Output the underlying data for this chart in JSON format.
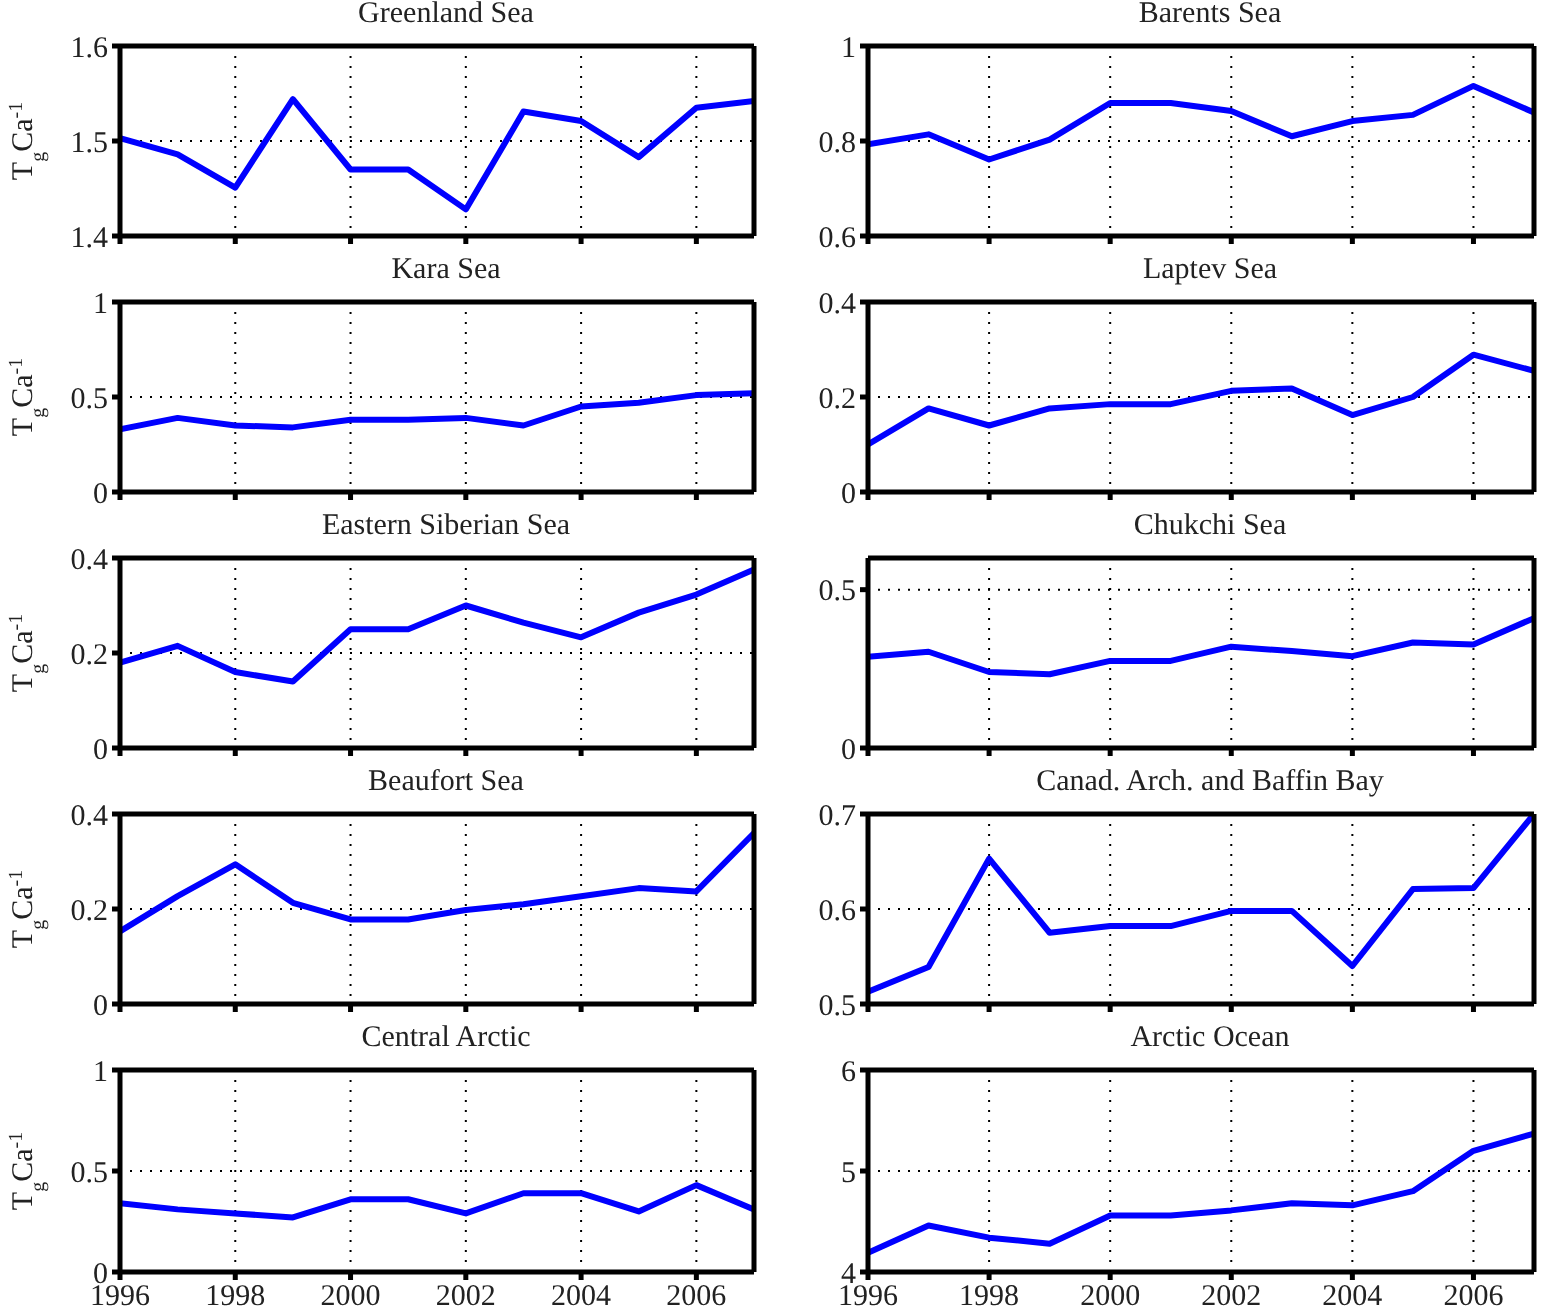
{
  "chart_data": [
    {
      "type": "line",
      "title": "Greenland Sea",
      "ylabel": "T$_{g}$Ca$^{-1}$",
      "x": [
        1996,
        1997,
        1998,
        1999,
        2000,
        2001,
        2002,
        2003,
        2004,
        2005,
        2006,
        2007
      ],
      "color": "#0000ff",
      "values": [
        1.503,
        1.486,
        1.451,
        1.544,
        1.47,
        1.47,
        1.428,
        1.531,
        1.521,
        1.483,
        1.535,
        1.542
      ],
      "xlim": [
        1996,
        2007
      ],
      "xticks": [
        1996,
        1998,
        2000,
        2002,
        2004,
        2006
      ],
      "ylim": [
        1.4,
        1.6
      ],
      "yticks": [
        1.4,
        1.5,
        1.6
      ],
      "grid": true,
      "tick_labels": "y"
    },
    {
      "type": "line",
      "title": "Barents Sea",
      "x": [
        1996,
        1997,
        1998,
        1999,
        2000,
        2001,
        2002,
        2003,
        2004,
        2005,
        2006,
        2007
      ],
      "color": "#0000ff",
      "values": [
        0.793,
        0.814,
        0.761,
        0.803,
        0.88,
        0.88,
        0.863,
        0.81,
        0.842,
        0.855,
        0.916,
        0.86
      ],
      "xlim": [
        1996,
        2007
      ],
      "xticks": [
        1996,
        1998,
        2000,
        2002,
        2004,
        2006
      ],
      "ylim": [
        0.6,
        1
      ],
      "yticks": [
        0.6,
        0.8,
        1
      ],
      "grid": true,
      "tick_labels": "y"
    },
    {
      "type": "line",
      "title": "Kara Sea",
      "ylabel": "T$_{g}$Ca$^{-1}$",
      "x": [
        1996,
        1997,
        1998,
        1999,
        2000,
        2001,
        2002,
        2003,
        2004,
        2005,
        2006,
        2007
      ],
      "color": "#0000ff",
      "values": [
        0.33,
        0.39,
        0.35,
        0.34,
        0.38,
        0.38,
        0.39,
        0.35,
        0.45,
        0.47,
        0.51,
        0.52
      ],
      "xlim": [
        1996,
        2007
      ],
      "xticks": [
        1996,
        1998,
        2000,
        2002,
        2004,
        2006
      ],
      "ylim": [
        0,
        1
      ],
      "yticks": [
        0,
        0.5,
        1
      ],
      "grid": true,
      "tick_labels": "y"
    },
    {
      "type": "line",
      "title": "Laptev Sea",
      "x": [
        1996,
        1997,
        1998,
        1999,
        2000,
        2001,
        2002,
        2003,
        2004,
        2005,
        2006,
        2007
      ],
      "color": "#0000ff",
      "values": [
        0.1,
        0.176,
        0.14,
        0.176,
        0.185,
        0.185,
        0.213,
        0.218,
        0.162,
        0.2,
        0.289,
        0.255
      ],
      "xlim": [
        1996,
        2007
      ],
      "xticks": [
        1996,
        1998,
        2000,
        2002,
        2004,
        2006
      ],
      "ylim": [
        0,
        0.4
      ],
      "yticks": [
        0,
        0.2,
        0.4
      ],
      "grid": true,
      "tick_labels": "y"
    },
    {
      "type": "line",
      "title": "Eastern Siberian Sea",
      "ylabel": "T$_{g}$Ca$^{-1}$",
      "x": [
        1996,
        1997,
        1998,
        1999,
        2000,
        2001,
        2002,
        2003,
        2004,
        2005,
        2006,
        2007
      ],
      "color": "#0000ff",
      "values": [
        0.18,
        0.215,
        0.16,
        0.14,
        0.25,
        0.25,
        0.3,
        0.264,
        0.233,
        0.285,
        0.323,
        0.376
      ],
      "xlim": [
        1996,
        2007
      ],
      "xticks": [
        1996,
        1998,
        2000,
        2002,
        2004,
        2006
      ],
      "ylim": [
        0,
        0.4
      ],
      "yticks": [
        0,
        0.2,
        0.4
      ],
      "grid": true,
      "tick_labels": "y"
    },
    {
      "type": "line",
      "title": "Chukchi Sea",
      "x": [
        1996,
        1997,
        1998,
        1999,
        2000,
        2001,
        2002,
        2003,
        2004,
        2005,
        2006,
        2007
      ],
      "color": "#0000ff",
      "values": [
        0.288,
        0.304,
        0.24,
        0.233,
        0.275,
        0.275,
        0.32,
        0.306,
        0.29,
        0.333,
        0.327,
        0.41
      ],
      "xlim": [
        1996,
        2007
      ],
      "xticks": [
        1996,
        1998,
        2000,
        2002,
        2004,
        2006
      ],
      "ylim": [
        0,
        0.6
      ],
      "yticks": [
        0,
        0.5
      ],
      "grid": true,
      "tick_labels": "y"
    },
    {
      "type": "line",
      "title": "Beaufort Sea",
      "ylabel": "T$_{g}$Ca$^{-1}$",
      "x": [
        1996,
        1997,
        1998,
        1999,
        2000,
        2001,
        2002,
        2003,
        2004,
        2005,
        2006,
        2007
      ],
      "color": "#0000ff",
      "values": [
        0.153,
        0.227,
        0.294,
        0.213,
        0.178,
        0.178,
        0.198,
        0.21,
        0.227,
        0.244,
        0.237,
        0.36
      ],
      "xlim": [
        1996,
        2007
      ],
      "xticks": [
        1996,
        1998,
        2000,
        2002,
        2004,
        2006
      ],
      "ylim": [
        0,
        0.4
      ],
      "yticks": [
        0,
        0.2,
        0.4
      ],
      "grid": true,
      "tick_labels": "y"
    },
    {
      "type": "line",
      "title": "Canad. Arch. and Baffin Bay",
      "x": [
        1996,
        1997,
        1998,
        1999,
        2000,
        2001,
        2002,
        2003,
        2004,
        2005,
        2006,
        2007
      ],
      "color": "#0000ff",
      "values": [
        0.513,
        0.539,
        0.653,
        0.575,
        0.582,
        0.582,
        0.598,
        0.598,
        0.54,
        0.621,
        0.622,
        0.7
      ],
      "xlim": [
        1996,
        2007
      ],
      "xticks": [
        1996,
        1998,
        2000,
        2002,
        2004,
        2006
      ],
      "ylim": [
        0.5,
        0.7
      ],
      "yticks": [
        0.5,
        0.6,
        0.7
      ],
      "grid": true,
      "tick_labels": "y"
    },
    {
      "type": "line",
      "title": "Central Arctic",
      "ylabel": "T$_{g}$Ca$^{-1}$",
      "x": [
        1996,
        1997,
        1998,
        1999,
        2000,
        2001,
        2002,
        2003,
        2004,
        2005,
        2006,
        2007
      ],
      "color": "#0000ff",
      "values": [
        0.34,
        0.31,
        0.29,
        0.27,
        0.36,
        0.36,
        0.29,
        0.39,
        0.39,
        0.3,
        0.43,
        0.31
      ],
      "xlim": [
        1996,
        2007
      ],
      "xticks": [
        1996,
        1998,
        2000,
        2002,
        2004,
        2006
      ],
      "ylim": [
        0,
        1
      ],
      "yticks": [
        0,
        0.5,
        1
      ],
      "grid": true
    },
    {
      "type": "line",
      "title": "Arctic Ocean",
      "x": [
        1996,
        1997,
        1998,
        1999,
        2000,
        2001,
        2002,
        2003,
        2004,
        2005,
        2006,
        2007
      ],
      "color": "#0000ff",
      "values": [
        4.19,
        4.46,
        4.34,
        4.28,
        4.56,
        4.56,
        4.61,
        4.68,
        4.66,
        4.8,
        5.2,
        5.37
      ],
      "xlim": [
        1996,
        2007
      ],
      "xticks": [
        1996,
        1998,
        2000,
        2002,
        2004,
        2006
      ],
      "ylim": [
        4,
        6
      ],
      "yticks": [
        4,
        5,
        6
      ],
      "grid": true
    }
  ]
}
